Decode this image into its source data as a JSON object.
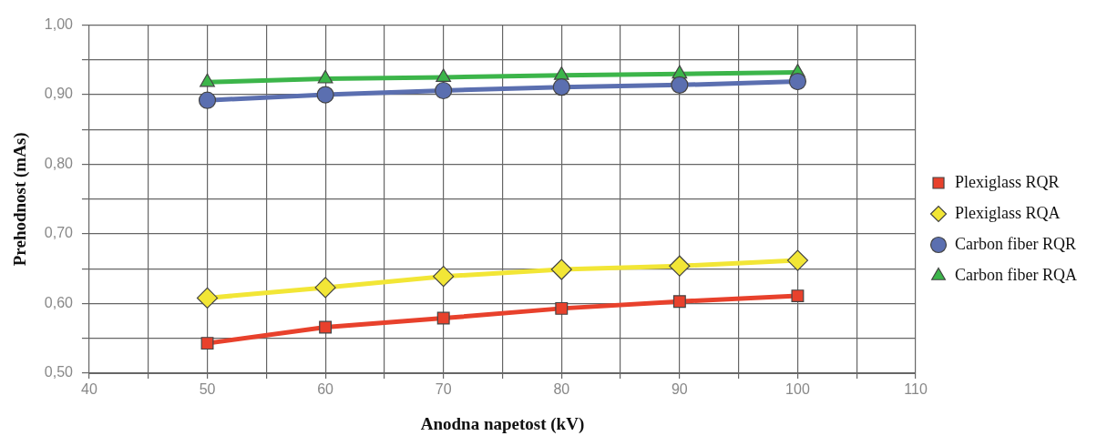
{
  "chart_data": {
    "type": "line",
    "xlabel": "Anodna napetost (kV)",
    "ylabel": "Prehodnost (mAs)",
    "x": [
      50,
      60,
      70,
      80,
      90,
      100
    ],
    "series": [
      {
        "name": "Plexiglass RQR",
        "color": "#e8412c",
        "marker": "square",
        "values": [
          0.543,
          0.566,
          0.579,
          0.593,
          0.603,
          0.611
        ]
      },
      {
        "name": "Plexiglass RQA",
        "color": "#f2e636",
        "marker": "diamond",
        "values": [
          0.608,
          0.623,
          0.639,
          0.649,
          0.654,
          0.662
        ]
      },
      {
        "name": "Carbon fiber RQR",
        "color": "#5b6fb0",
        "marker": "circle",
        "values": [
          0.892,
          0.9,
          0.906,
          0.911,
          0.914,
          0.919
        ]
      },
      {
        "name": "Carbon fiber RQA",
        "color": "#3cb54a",
        "marker": "triangle",
        "values": [
          0.918,
          0.923,
          0.925,
          0.928,
          0.93,
          0.932
        ]
      }
    ],
    "xlim": [
      40,
      110
    ],
    "xticks": [
      40,
      {
        "value": 45,
        "label": null
      },
      50,
      {
        "value": 55,
        "label": null
      },
      60,
      {
        "value": 65,
        "label": null
      },
      70,
      {
        "value": 75,
        "label": null
      },
      80,
      {
        "value": 85,
        "label": null
      },
      90,
      {
        "value": 95,
        "label": null
      },
      100,
      {
        "value": 105,
        "label": null
      },
      110
    ],
    "ylim": [
      0.5,
      1.0
    ],
    "yticks": [
      {
        "value": 0.5,
        "label": "0,50"
      },
      {
        "value": 0.55,
        "label": null
      },
      {
        "value": 0.6,
        "label": "0,60"
      },
      {
        "value": 0.65,
        "label": null
      },
      {
        "value": 0.7,
        "label": "0,70"
      },
      {
        "value": 0.75,
        "label": null
      },
      {
        "value": 0.8,
        "label": "0,80"
      },
      {
        "value": 0.85,
        "label": null
      },
      {
        "value": 0.9,
        "label": "0,90"
      },
      {
        "value": 0.95,
        "label": null
      },
      {
        "value": 1.0,
        "label": "1,00"
      }
    ],
    "grid": true,
    "legend": "right",
    "line_style": "solid"
  }
}
